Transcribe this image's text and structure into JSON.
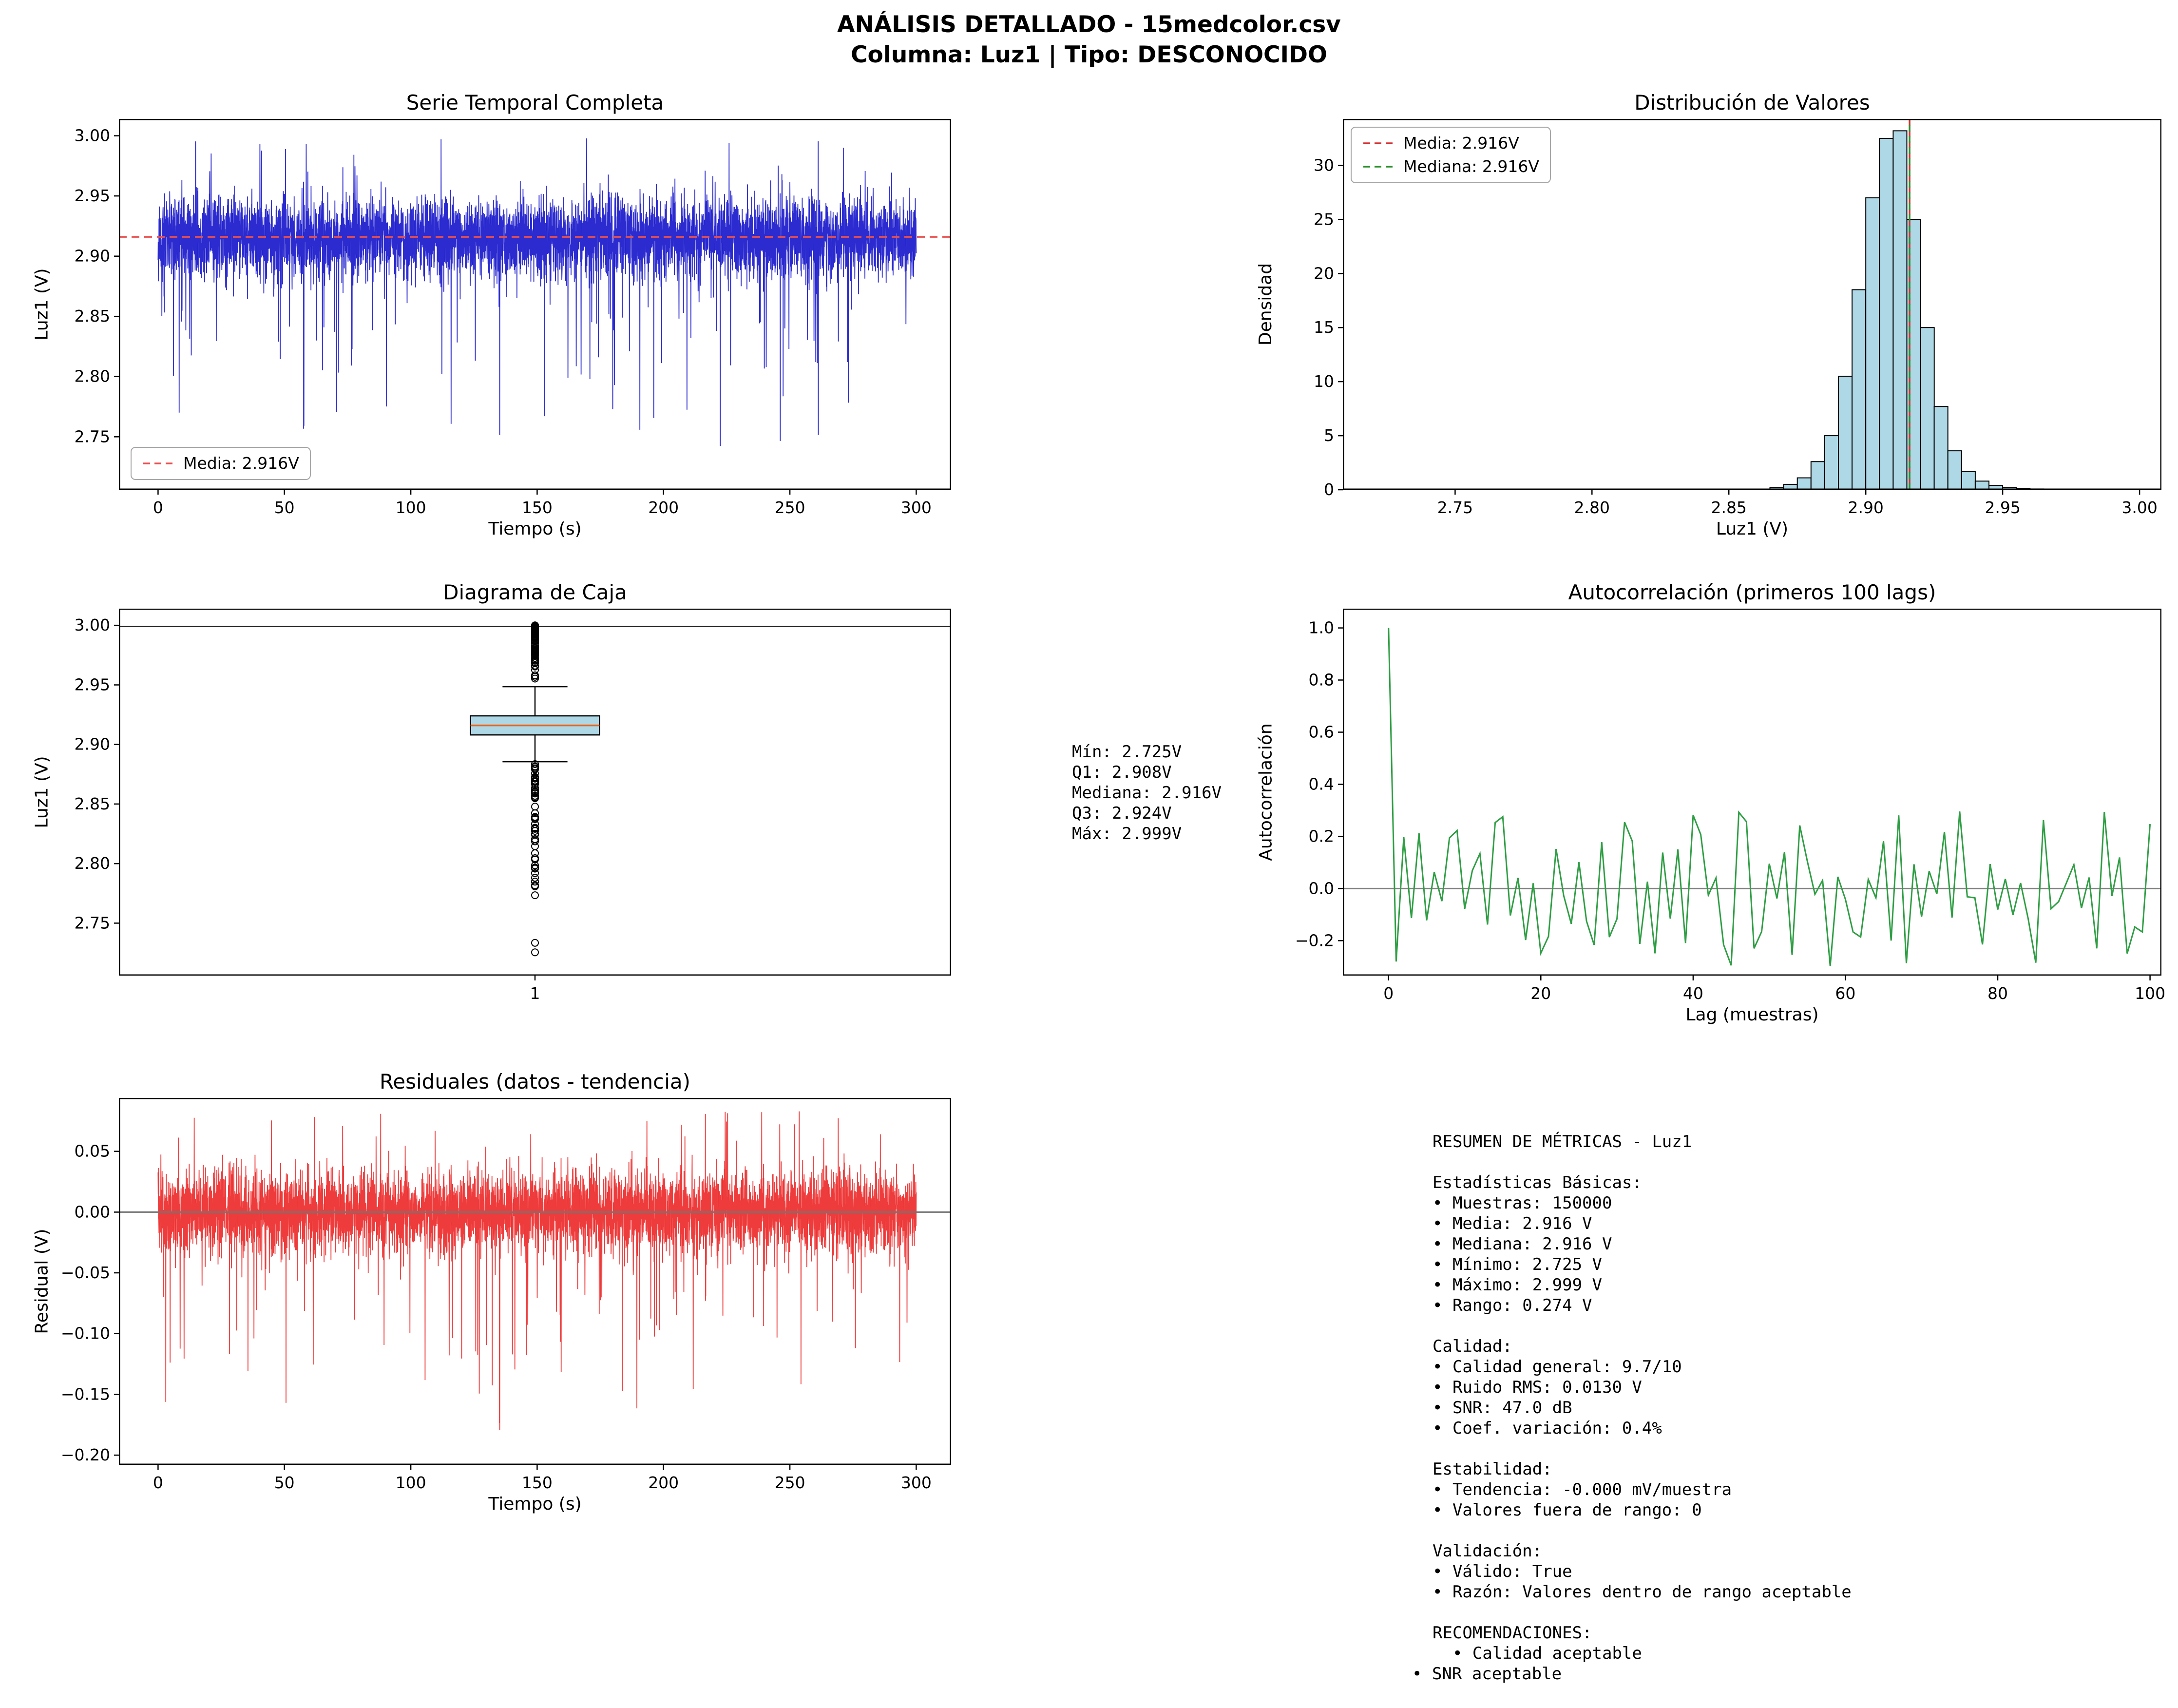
{
  "header": {
    "title_line1": "ANÁLISIS DETALLADO - 15medcolor.csv",
    "title_line2": "Columna: Luz1 | Tipo: DESCONOCIDO"
  },
  "box_annotation": {
    "lines": [
      "Mín: 2.725V",
      "Q1: 2.908V",
      "Mediana: 2.916V",
      "Q3: 2.924V",
      "Máx: 2.999V"
    ]
  },
  "metrics_panel": {
    "lines": [
      "RESUMEN DE MÉTRICAS - Luz1",
      "",
      "Estadísticas Básicas:",
      "• Muestras: 150000",
      "• Media: 2.916 V",
      "• Mediana: 2.916 V",
      "• Mínimo: 2.725 V",
      "• Máximo: 2.999 V",
      "• Rango: 0.274 V",
      "",
      "Calidad:",
      "• Calidad general: 9.7/10",
      "• Ruido RMS: 0.0130 V",
      "• SNR: 47.0 dB",
      "• Coef. variación: 0.4%",
      "",
      "Estabilidad:",
      "• Tendencia: -0.000 mV/muestra",
      "• Valores fuera de rango: 0",
      "",
      "Validación:",
      "• Válido: True",
      "• Razón: Valores dentro de rango aceptable",
      "",
      "RECOMENDACIONES:",
      "  • Calidad aceptable"
    ],
    "footer_line": "• SNR aceptable"
  },
  "chart_data": [
    {
      "id": "serie-temporal",
      "type": "line",
      "title": "Serie Temporal Completa",
      "xlabel": "Tiempo (s)",
      "ylabel": "Luz1 (V)",
      "xlim": [
        -15.5,
        313.8
      ],
      "ylim": [
        2.706,
        3.014
      ],
      "xticks": [
        0,
        50,
        100,
        150,
        200,
        250,
        300
      ],
      "xtick_labels": [
        "0",
        "50",
        "100",
        "150",
        "200",
        "250",
        "300"
      ],
      "yticks": [
        2.75,
        2.8,
        2.85,
        2.9,
        2.95,
        3.0
      ],
      "ytick_labels": [
        "2.75",
        "2.80",
        "2.85",
        "2.90",
        "2.95",
        "3.00"
      ],
      "stats": {
        "mean": 2.916
      },
      "legend": [
        {
          "label": "Media: 2.916V",
          "color": "#e85050",
          "dash": "14,9"
        }
      ],
      "legend_pos": "lower left",
      "series": [
        {
          "type": "noise",
          "color": "#2b2bd0",
          "line_width": 1.8,
          "n": 5600,
          "x_start": 0,
          "x_end": 300,
          "mean": 2.9155,
          "std": 0.0165,
          "clip_low": 2.726,
          "clip_high": 3.0,
          "seed": 11,
          "spikes": [
            {
              "rate": 0.012,
              "low": 2.728,
              "high": 2.86,
              "power": 0.6
            },
            {
              "rate": 0.004,
              "low": 2.96,
              "high": 2.999,
              "power": 0.6
            }
          ]
        },
        {
          "type": "hline",
          "y": 2.916,
          "color": "#e85050",
          "line_width": 3.5,
          "dash": "16,10"
        }
      ]
    },
    {
      "id": "distribucion",
      "type": "bar",
      "title": "Distribución de Valores",
      "xlabel": "Luz1 (V)",
      "ylabel": "Densidad",
      "xlim": [
        2.709,
        3.008
      ],
      "ylim": [
        0,
        34.3
      ],
      "xticks": [
        2.75,
        2.8,
        2.85,
        2.9,
        2.95,
        3.0
      ],
      "xtick_labels": [
        "2.75",
        "2.80",
        "2.85",
        "2.90",
        "2.95",
        "3.00"
      ],
      "yticks": [
        0,
        5,
        10,
        15,
        20,
        25,
        30
      ],
      "ytick_labels": [
        "0",
        "5",
        "10",
        "15",
        "20",
        "25",
        "30"
      ],
      "stats": {
        "mean": 2.916,
        "median": 2.916
      },
      "bin_start": 2.865,
      "bin_width": 0.005,
      "bin_heights": [
        0.2,
        0.5,
        1.1,
        2.6,
        5.0,
        10.5,
        18.5,
        27.0,
        32.5,
        33.2,
        25.0,
        15.0,
        7.7,
        3.6,
        1.7,
        0.8,
        0.4,
        0.2,
        0.12,
        0.07,
        0.04
      ],
      "legend": [
        {
          "label": "Media: 2.916V",
          "color": "#d62f2f",
          "dash": "14,9"
        },
        {
          "label": "Mediana: 2.916V",
          "color": "#2a8f2a",
          "dash": "14,9"
        }
      ],
      "legend_pos": "upper left",
      "series": [
        {
          "type": "hist",
          "fill": "#aed8e6",
          "edge": "#000000"
        },
        {
          "type": "vline",
          "x": 2.916,
          "color": "#d62f2f",
          "line_width": 3.5,
          "dash": "14,9"
        },
        {
          "type": "vline",
          "x": 2.916,
          "color": "#2a8f2a",
          "line_width": 3.5,
          "dash": "14,9",
          "dashoffset": 11
        }
      ]
    },
    {
      "id": "diagrama-caja",
      "type": "box",
      "title": "Diagrama de Caja",
      "xlabel": "",
      "ylabel": "Luz1 (V)",
      "xlim": [
        0.5,
        1.5
      ],
      "ylim": [
        2.706,
        3.014
      ],
      "xticks": [
        1
      ],
      "xtick_labels": [
        "1"
      ],
      "yticks": [
        2.75,
        2.8,
        2.85,
        2.9,
        2.95,
        3.0
      ],
      "ytick_labels": [
        "2.75",
        "2.80",
        "2.85",
        "2.90",
        "2.95",
        "3.00"
      ],
      "box_stats": {
        "min": 2.725,
        "q1": 2.908,
        "median": 2.916,
        "q3": 2.924,
        "max": 2.999
      },
      "series": [
        {
          "type": "hline",
          "y": 2.999,
          "color": "#262626",
          "line_width": 2
        },
        {
          "type": "box",
          "x": 1,
          "box_width": 0.155,
          "cap_width": 0.078,
          "q1": 2.908,
          "median": 2.916,
          "q3": 2.924,
          "whisker_low": 2.8855,
          "whisker_high": 2.9485,
          "fill": "#aed8e6",
          "median_color": "#e8641b",
          "seed": 5,
          "out_above": {
            "n": 85,
            "low": 2.9495,
            "high": 3.0,
            "power": 0.45
          },
          "out_below": {
            "n": 60,
            "low": 2.7555,
            "high": 2.8845,
            "power": 0.5
          },
          "out_extra": [
            2.7335,
            2.7255
          ],
          "out_radius": 7
        }
      ]
    },
    {
      "id": "autocorrelacion",
      "type": "line",
      "title": "Autocorrelación (primeros 100 lags)",
      "xlabel": "Lag (muestras)",
      "ylabel": "Autocorrelación",
      "xlim": [
        -6,
        101.5
      ],
      "ylim": [
        -0.334,
        1.074
      ],
      "xticks": [
        0,
        20,
        40,
        60,
        80,
        100
      ],
      "xtick_labels": [
        "0",
        "20",
        "40",
        "60",
        "80",
        "100"
      ],
      "yticks": [
        -0.2,
        0,
        0.2,
        0.4,
        0.6,
        0.8,
        1.0
      ],
      "ytick_labels": [
        "−0.2",
        "0.0",
        "0.2",
        "0.4",
        "0.6",
        "0.8",
        "1.0"
      ],
      "series": [
        {
          "type": "hline",
          "y": 0,
          "color": "#808080",
          "line_width": 3
        },
        {
          "type": "acf",
          "color": "#2f9e44",
          "line_width": 3,
          "n_lags": 100,
          "lag0": 1.0,
          "lag1": -0.28,
          "mag_base": 0.02,
          "mag_range": 0.28,
          "flip_prob": 0.72,
          "seed": 3
        }
      ]
    },
    {
      "id": "residuales",
      "type": "line",
      "title": "Residuales (datos - tendencia)",
      "xlabel": "Tiempo (s)",
      "ylabel": "Residual (V)",
      "xlim": [
        -15.5,
        313.8
      ],
      "ylim": [
        -0.208,
        0.094
      ],
      "xticks": [
        0,
        50,
        100,
        150,
        200,
        250,
        300
      ],
      "xtick_labels": [
        "0",
        "50",
        "100",
        "150",
        "200",
        "250",
        "300"
      ],
      "yticks": [
        -0.2,
        -0.15,
        -0.1,
        -0.05,
        0,
        0.05
      ],
      "ytick_labels": [
        "−0.20",
        "−0.15",
        "−0.10",
        "−0.05",
        "0.00",
        "0.05"
      ],
      "series": [
        {
          "type": "noise",
          "color": "#ee3b3b",
          "line_width": 1.8,
          "n": 5600,
          "x_start": 0,
          "x_end": 300,
          "mean": 0.0,
          "std": 0.0165,
          "clip_low": -0.192,
          "clip_high": 0.085,
          "seed": 23,
          "spikes": [
            {
              "rate": 0.012,
              "low": -0.19,
              "high": -0.056,
              "power": 0.6
            },
            {
              "rate": 0.004,
              "low": 0.056,
              "high": 0.083,
              "power": 0.6
            }
          ]
        },
        {
          "type": "hline",
          "y": 0,
          "color": "#737373",
          "line_width": 3
        }
      ]
    }
  ]
}
